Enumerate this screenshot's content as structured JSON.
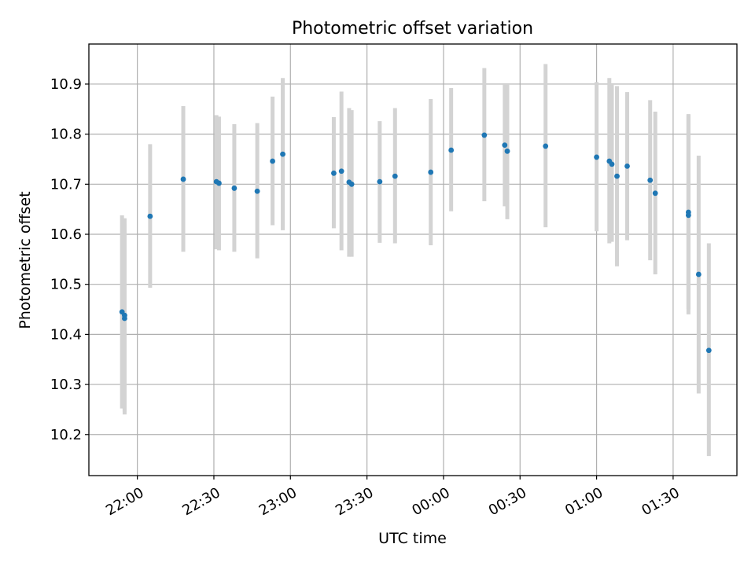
{
  "chart_data": {
    "type": "scatter",
    "title": "Photometric offset variation",
    "xlabel": "UTC time",
    "ylabel": "Photometric offset",
    "x_scale": "time",
    "x_range": [
      "21:41",
      "01:55"
    ],
    "ylim": [
      10.118,
      10.98
    ],
    "x_ticks": [
      {
        "time": "22:00",
        "label": "22:00"
      },
      {
        "time": "22:30",
        "label": "22:30"
      },
      {
        "time": "23:00",
        "label": "23:00"
      },
      {
        "time": "23:30",
        "label": "23:30"
      },
      {
        "time": "00:00",
        "label": "00:00"
      },
      {
        "time": "00:30",
        "label": "00:30"
      },
      {
        "time": "01:00",
        "label": "01:00"
      },
      {
        "time": "01:30",
        "label": "01:30"
      }
    ],
    "y_ticks": [
      10.2,
      10.3,
      10.4,
      10.5,
      10.6,
      10.7,
      10.8,
      10.9
    ],
    "grid": true,
    "marker_color": "#1f77b4",
    "errorbar_color": "#d3d3d3",
    "series": [
      {
        "points": [
          {
            "time": "21:54",
            "value": 10.445,
            "err_low": 10.252,
            "err_high": 10.638
          },
          {
            "time": "21:55",
            "value": 10.432,
            "err_low": 10.24,
            "err_high": 10.62
          },
          {
            "time": "21:55",
            "value": 10.438,
            "err_low": 10.246,
            "err_high": 10.632
          },
          {
            "time": "22:05",
            "value": 10.636,
            "err_low": 10.493,
            "err_high": 10.78
          },
          {
            "time": "22:18",
            "value": 10.71,
            "err_low": 10.565,
            "err_high": 10.856
          },
          {
            "time": "22:31",
            "value": 10.705,
            "err_low": 10.57,
            "err_high": 10.838
          },
          {
            "time": "22:32",
            "value": 10.702,
            "err_low": 10.568,
            "err_high": 10.835
          },
          {
            "time": "22:38",
            "value": 10.692,
            "err_low": 10.565,
            "err_high": 10.82
          },
          {
            "time": "22:47",
            "value": 10.686,
            "err_low": 10.552,
            "err_high": 10.822
          },
          {
            "time": "22:53",
            "value": 10.746,
            "err_low": 10.618,
            "err_high": 10.875
          },
          {
            "time": "22:57",
            "value": 10.76,
            "err_low": 10.608,
            "err_high": 10.912
          },
          {
            "time": "23:17",
            "value": 10.722,
            "err_low": 10.612,
            "err_high": 10.834
          },
          {
            "time": "23:20",
            "value": 10.726,
            "err_low": 10.568,
            "err_high": 10.885
          },
          {
            "time": "23:23",
            "value": 10.704,
            "err_low": 10.555,
            "err_high": 10.852
          },
          {
            "time": "23:24",
            "value": 10.7,
            "err_low": 10.555,
            "err_high": 10.848
          },
          {
            "time": "23:35",
            "value": 10.705,
            "err_low": 10.583,
            "err_high": 10.826
          },
          {
            "time": "23:41",
            "value": 10.716,
            "err_low": 10.582,
            "err_high": 10.852
          },
          {
            "time": "23:55",
            "value": 10.724,
            "err_low": 10.578,
            "err_high": 10.87
          },
          {
            "time": "00:03",
            "value": 10.768,
            "err_low": 10.646,
            "err_high": 10.892
          },
          {
            "time": "00:16",
            "value": 10.798,
            "err_low": 10.666,
            "err_high": 10.932
          },
          {
            "time": "00:24",
            "value": 10.778,
            "err_low": 10.656,
            "err_high": 10.9
          },
          {
            "time": "00:25",
            "value": 10.766,
            "err_low": 10.63,
            "err_high": 10.9
          },
          {
            "time": "00:40",
            "value": 10.776,
            "err_low": 10.614,
            "err_high": 10.94
          },
          {
            "time": "01:00",
            "value": 10.754,
            "err_low": 10.606,
            "err_high": 10.904
          },
          {
            "time": "01:05",
            "value": 10.746,
            "err_low": 10.582,
            "err_high": 10.912
          },
          {
            "time": "01:06",
            "value": 10.74,
            "err_low": 10.585,
            "err_high": 10.9
          },
          {
            "time": "01:08",
            "value": 10.716,
            "err_low": 10.536,
            "err_high": 10.896
          },
          {
            "time": "01:12",
            "value": 10.736,
            "err_low": 10.588,
            "err_high": 10.884
          },
          {
            "time": "01:21",
            "value": 10.708,
            "err_low": 10.548,
            "err_high": 10.868
          },
          {
            "time": "01:23",
            "value": 10.682,
            "err_low": 10.52,
            "err_high": 10.845
          },
          {
            "time": "01:36",
            "value": 10.644,
            "err_low": 10.45,
            "err_high": 10.84
          },
          {
            "time": "01:36",
            "value": 10.638,
            "err_low": 10.44,
            "err_high": 10.838
          },
          {
            "time": "01:40",
            "value": 10.52,
            "err_low": 10.282,
            "err_high": 10.757
          },
          {
            "time": "01:44",
            "value": 10.368,
            "err_low": 10.157,
            "err_high": 10.582
          }
        ]
      }
    ]
  }
}
